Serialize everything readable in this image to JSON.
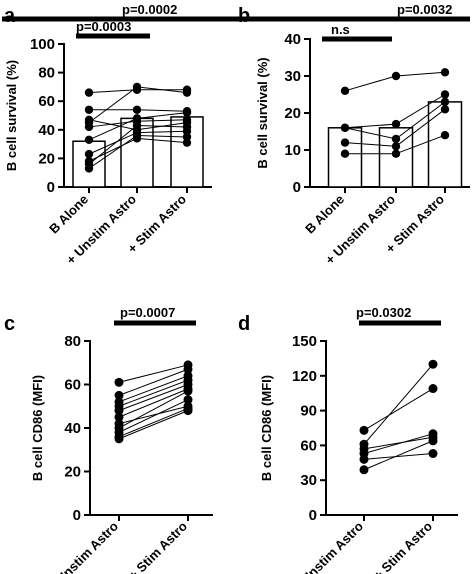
{
  "chart_data": [
    {
      "panel": "a",
      "type": "bar",
      "ylabel": "B cell survival (%)",
      "ylim": [
        0,
        100
      ],
      "yticks": [
        0,
        20,
        40,
        60,
        80,
        100
      ],
      "categories": [
        "B Alone",
        "+ Unstim Astro",
        "+ Stim Astro"
      ],
      "values": [
        32,
        48,
        49
      ],
      "paired_points": [
        [
          66,
          45,
          54,
          33,
          47,
          42,
          16,
          23,
          13,
          18
        ],
        [
          68,
          70,
          54,
          48,
          40,
          46,
          43,
          38,
          36,
          34
        ],
        [
          68,
          66,
          53,
          52,
          45,
          47,
          42,
          39,
          35,
          31
        ]
      ],
      "comparisons": [
        {
          "label": "p=0.0003",
          "from": 0,
          "to": 1
        },
        {
          "label": "p=0.0002",
          "from": 0,
          "to": 2
        }
      ]
    },
    {
      "panel": "b",
      "type": "bar",
      "ylabel": "B cell survival (%)",
      "ylim": [
        0,
        40
      ],
      "yticks": [
        0,
        10,
        20,
        30,
        40
      ],
      "categories": [
        "B Alone",
        "+ Unstim Astro",
        "+ Stim Astro"
      ],
      "values": [
        16,
        16,
        23
      ],
      "paired_points": [
        [
          26,
          16,
          16,
          12,
          9
        ],
        [
          30,
          17,
          13,
          11,
          9
        ],
        [
          31,
          25,
          23,
          21,
          14
        ]
      ],
      "comparisons": [
        {
          "label": "n.s",
          "from": 0,
          "to": 1
        },
        {
          "label": "p=0.0032",
          "from": 0,
          "to": 2
        }
      ]
    },
    {
      "panel": "c",
      "type": "line",
      "ylabel": "B cell CD86 (MFI)",
      "ylim": [
        0,
        80
      ],
      "yticks": [
        0,
        20,
        40,
        60,
        80
      ],
      "categories": [
        "+ Unstim Astro",
        "+ Stim Astro"
      ],
      "pairs": [
        [
          61,
          69
        ],
        [
          55,
          67
        ],
        [
          52,
          64
        ],
        [
          50,
          62
        ],
        [
          48,
          60
        ],
        [
          45,
          58
        ],
        [
          42,
          50
        ],
        [
          40,
          57
        ],
        [
          38,
          53
        ],
        [
          36,
          49
        ],
        [
          35,
          48
        ]
      ],
      "comparisons": [
        {
          "label": "p=0.0007",
          "from": 0,
          "to": 1
        }
      ]
    },
    {
      "panel": "d",
      "type": "line",
      "ylabel": "B cell CD86 (MFI)",
      "ylim": [
        0,
        150
      ],
      "yticks": [
        0,
        30,
        60,
        90,
        120,
        150
      ],
      "categories": [
        "+ Unstim Astro",
        "+ Stim Astro"
      ],
      "pairs": [
        [
          73,
          109
        ],
        [
          61,
          130
        ],
        [
          57,
          67
        ],
        [
          53,
          70
        ],
        [
          48,
          53
        ],
        [
          39,
          64
        ]
      ],
      "comparisons": [
        {
          "label": "p=0.0302",
          "from": 0,
          "to": 1
        }
      ]
    }
  ]
}
